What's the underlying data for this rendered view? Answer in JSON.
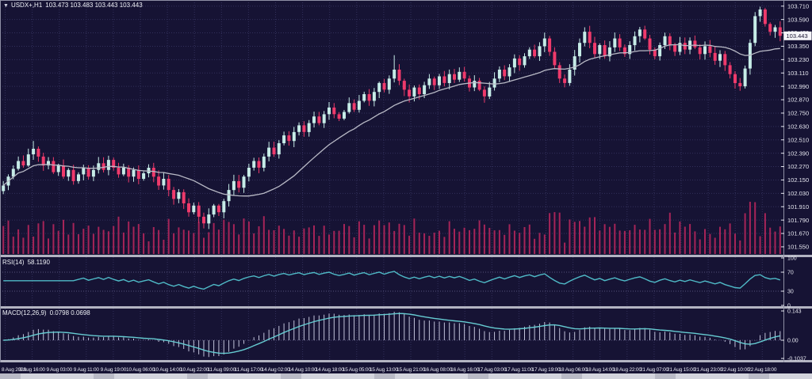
{
  "header": {
    "marker": "▼",
    "symbol": "USDX+,H1",
    "ohlc": "103.473 103.483 103.443 103.443"
  },
  "colors": {
    "background": "#161334",
    "grid": "#32305b",
    "grid_level": "#55537d",
    "bull": "#c6ece7",
    "bear": "#ef3a6b",
    "ma_line": "#b9bac6",
    "volume": "#a62458",
    "rsi_line": "#4fbac7",
    "macd_hist": "#c2c3da",
    "macd_signal": "#66ccd2",
    "axis_text": "#e6e7f0",
    "divider": "#b3b4c2",
    "border": "#8f90a5",
    "price_tag_bg": "#f4f4f8",
    "price_tag_text": "#15122f"
  },
  "panels": {
    "rsi": {
      "label": "RSI(14)",
      "value": "58.1190",
      "ticks": [
        "100",
        "70",
        "30",
        "0"
      ]
    },
    "macd": {
      "label": "MACD(12,26,9)",
      "value": "0.0798 0.0698",
      "ticks": [
        "0.143",
        "0.00",
        "-0.1037"
      ]
    }
  },
  "price_axis": {
    "current_price": "103.443"
  },
  "chart_data": {
    "type": "candlestick",
    "symbol": "USDX+",
    "timeframe": "H1",
    "title": "USDX+,H1 103.473 103.483 103.443 103.443",
    "ohlc_display": {
      "open": "103.473",
      "high": "103.483",
      "low": "103.443",
      "close": "103.443"
    },
    "price_range_shown": [
      101.55,
      103.71
    ],
    "y_ticks_price": [
      "103.710",
      "103.590",
      "103.470",
      "103.350",
      "103.230",
      "103.110",
      "102.990",
      "102.870",
      "102.750",
      "102.630",
      "102.510",
      "102.390",
      "102.270",
      "102.150",
      "102.030",
      "101.910",
      "101.790",
      "101.670",
      "101.550"
    ],
    "x_labels": [
      "8 Aug 2023",
      "8 Aug 16:00",
      "9 Aug 03:00",
      "9 Aug 11:00",
      "9 Aug 19:00",
      "10 Aug 06:00",
      "10 Aug 14:00",
      "10 Aug 22:00",
      "11 Aug 09:00",
      "11 Aug 17:00",
      "14 Aug 02:00",
      "14 Aug 10:00",
      "14 Aug 18:00",
      "15 Aug 05:00",
      "15 Aug 13:00",
      "15 Aug 21:00",
      "16 Aug 08:00",
      "16 Aug 16:00",
      "17 Aug 03:00",
      "17 Aug 11:00",
      "17 Aug 19:00",
      "18 Aug 06:00",
      "18 Aug 14:00",
      "18 Aug 22:00",
      "21 Aug 07:00",
      "21 Aug 15:00",
      "21 Aug 23:00",
      "22 Aug 10:00",
      "22 Aug 18:00"
    ],
    "closes": [
      102.1,
      102.18,
      102.25,
      102.32,
      102.28,
      102.38,
      102.43,
      102.36,
      102.28,
      102.32,
      102.22,
      102.28,
      102.18,
      102.24,
      102.14,
      102.2,
      102.26,
      102.18,
      102.24,
      102.3,
      102.24,
      102.33,
      102.26,
      102.2,
      102.26,
      102.18,
      102.24,
      102.16,
      102.21,
      102.26,
      102.18,
      102.1,
      102.16,
      102.06,
      101.98,
      102.04,
      101.94,
      101.86,
      101.92,
      101.82,
      101.76,
      101.84,
      101.92,
      101.86,
      101.96,
      102.06,
      102.14,
      102.08,
      102.18,
      102.26,
      102.32,
      102.26,
      102.36,
      102.44,
      102.38,
      102.48,
      102.55,
      102.5,
      102.58,
      102.64,
      102.58,
      102.66,
      102.72,
      102.66,
      102.74,
      102.8,
      102.74,
      102.7,
      102.76,
      102.84,
      102.78,
      102.86,
      102.92,
      102.86,
      102.94,
      103.02,
      102.96,
      103.06,
      103.14,
      103.04,
      102.96,
      102.9,
      102.98,
      102.92,
      103.0,
      103.06,
      103.0,
      103.08,
      103.02,
      103.1,
      103.05,
      103.12,
      103.06,
      102.98,
      103.04,
      102.96,
      102.9,
      102.98,
      103.06,
      103.14,
      103.08,
      103.16,
      103.24,
      103.18,
      103.26,
      103.32,
      103.26,
      103.35,
      103.42,
      103.3,
      103.18,
      103.06,
      103.02,
      103.14,
      103.26,
      103.38,
      103.48,
      103.38,
      103.28,
      103.36,
      103.26,
      103.34,
      103.42,
      103.34,
      103.28,
      103.36,
      103.44,
      103.5,
      103.42,
      103.32,
      103.26,
      103.36,
      103.44,
      103.36,
      103.3,
      103.38,
      103.32,
      103.4,
      103.34,
      103.28,
      103.35,
      103.29,
      103.22,
      103.28,
      103.18,
      103.1,
      103.02,
      102.99,
      103.15,
      103.38,
      103.62,
      103.68,
      103.55,
      103.48,
      103.52,
      103.443
    ],
    "wick_overrides": {
      "6": {
        "high": 102.5
      },
      "40": {
        "low": 101.715
      },
      "78": {
        "high": 103.27
      },
      "116": {
        "high": 103.52
      },
      "151": {
        "high": 103.705
      }
    },
    "ma_period": 20,
    "rsi": {
      "period": 14,
      "last": "58.1190",
      "levels": [
        70,
        30
      ],
      "range": [
        0,
        100
      ]
    },
    "macd": {
      "fast": 12,
      "slow": 26,
      "signal": 9,
      "axis": [
        "0.143",
        "0.00",
        "-0.1037"
      ]
    }
  }
}
